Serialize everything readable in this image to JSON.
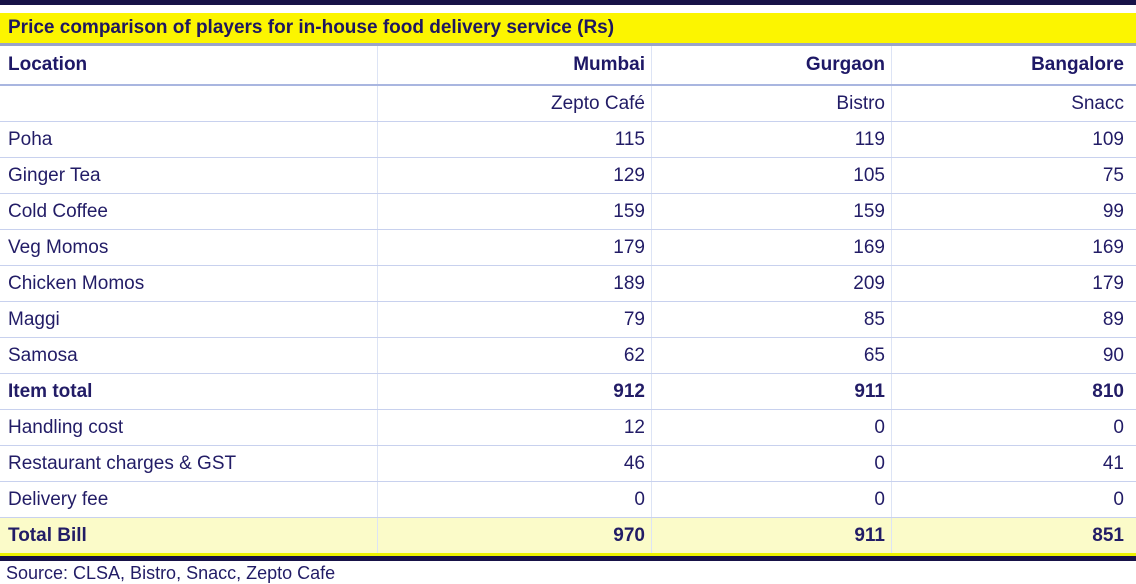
{
  "chart_data": {
    "type": "table",
    "title": "Price comparison of players for in-house food delivery service (Rs)",
    "columns": [
      "Location",
      "Mumbai",
      "Gurgaon",
      "Bangalore"
    ],
    "subcolumns": [
      "",
      "Zepto Café",
      "Bistro",
      "Snacc"
    ],
    "rows": [
      {
        "label": "Poha",
        "values": [
          115,
          119,
          109
        ],
        "bold": false,
        "highlight": false
      },
      {
        "label": "Ginger Tea",
        "values": [
          129,
          105,
          75
        ],
        "bold": false,
        "highlight": false
      },
      {
        "label": "Cold Coffee",
        "values": [
          159,
          159,
          99
        ],
        "bold": false,
        "highlight": false
      },
      {
        "label": "Veg Momos",
        "values": [
          179,
          169,
          169
        ],
        "bold": false,
        "highlight": false
      },
      {
        "label": "Chicken Momos",
        "values": [
          189,
          209,
          179
        ],
        "bold": false,
        "highlight": false
      },
      {
        "label": "Maggi",
        "values": [
          79,
          85,
          89
        ],
        "bold": false,
        "highlight": false
      },
      {
        "label": "Samosa",
        "values": [
          62,
          65,
          90
        ],
        "bold": false,
        "highlight": false
      },
      {
        "label": "Item total",
        "values": [
          912,
          911,
          810
        ],
        "bold": true,
        "highlight": false
      },
      {
        "label": "Handling cost",
        "values": [
          12,
          0,
          0
        ],
        "bold": false,
        "highlight": false
      },
      {
        "label": "Restaurant charges & GST",
        "values": [
          46,
          0,
          41
        ],
        "bold": false,
        "highlight": false
      },
      {
        "label": "Delivery fee",
        "values": [
          0,
          0,
          0
        ],
        "bold": false,
        "highlight": false
      },
      {
        "label": "Total Bill",
        "values": [
          970,
          911,
          851
        ],
        "bold": true,
        "highlight": true
      }
    ],
    "source": "Source: CLSA, Bistro, Snacc, Zepto Cafe",
    "layout": {
      "grid": "horizontal-rules",
      "value_alignment": "right"
    }
  },
  "colors": {
    "title_background": "#fcf500",
    "text_navy": "#221c66",
    "rule_navy": "#171247",
    "rule_periwinkle": "#9aa3c9",
    "row_separator": "#c8d1ee",
    "total_row_background": "#fbfbc9",
    "total_row_underline": "#ecf200"
  }
}
